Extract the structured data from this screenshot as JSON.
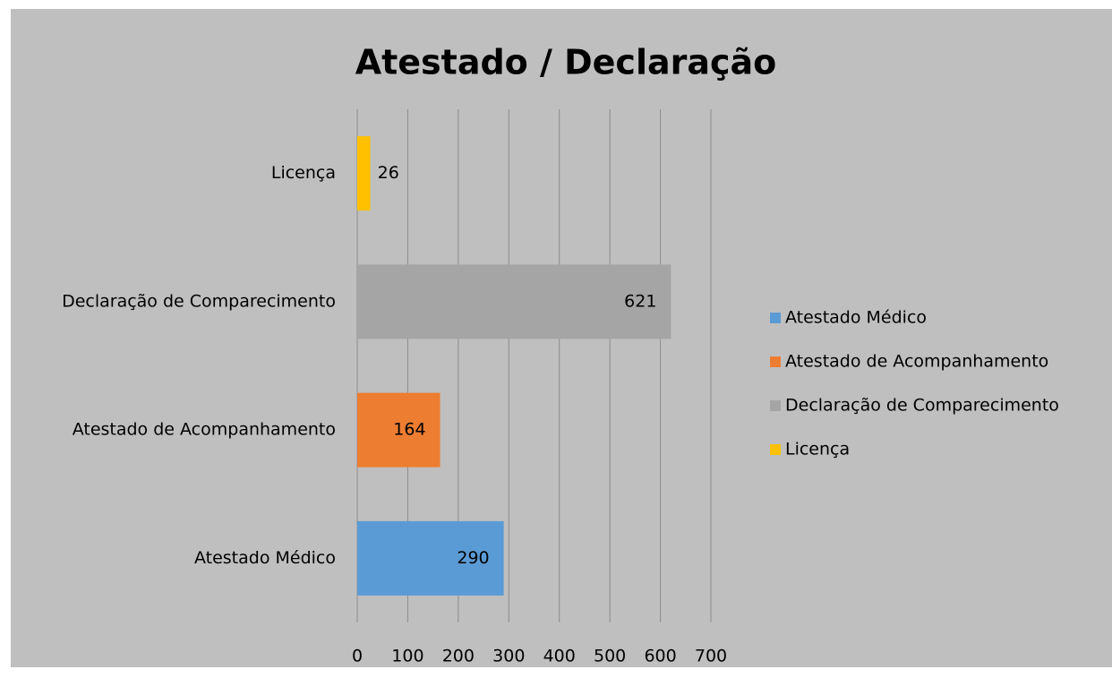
{
  "chart_data": {
    "type": "bar",
    "orientation": "horizontal",
    "title": "Atestado / Declaração",
    "categories": [
      "Atestado Médico",
      "Atestado de Acompanhamento",
      "Declaração de Comparecimento",
      "Licença"
    ],
    "values": [
      290,
      164,
      621,
      26
    ],
    "colors": [
      "#5b9bd5",
      "#ed7d31",
      "#a5a5a5",
      "#ffc000"
    ],
    "xlim": [
      0,
      700
    ],
    "xticks": [
      0,
      100,
      200,
      300,
      400,
      500,
      600,
      700
    ],
    "grid": true,
    "legend": "right"
  }
}
